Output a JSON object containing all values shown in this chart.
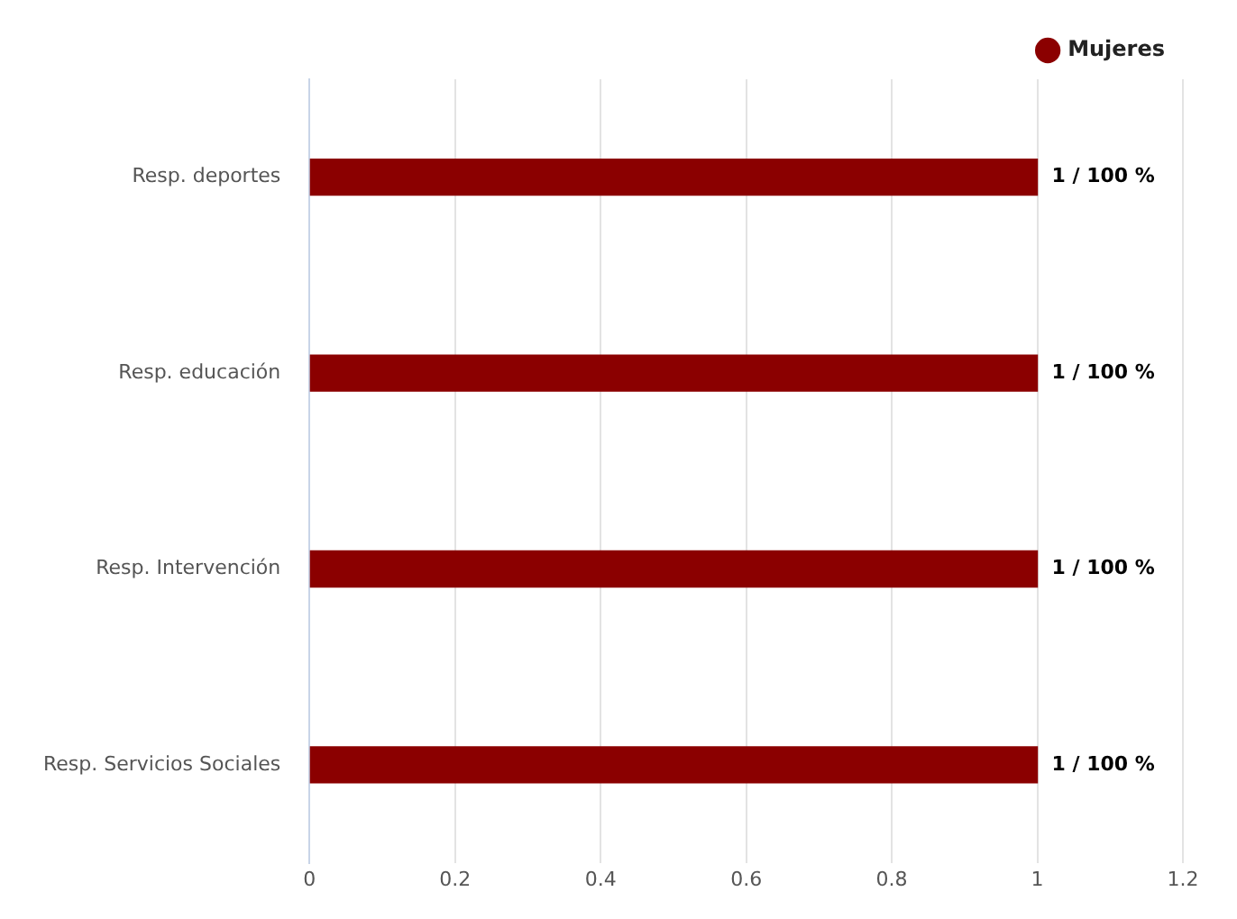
{
  "chart_data": {
    "type": "bar",
    "orientation": "horizontal",
    "categories": [
      "Resp. deportes",
      "Resp. educación",
      "Resp. Intervención",
      "Resp. Servicios Sociales"
    ],
    "series": [
      {
        "name": "Mujeres",
        "color": "#8b0000",
        "values": [
          1,
          1,
          1,
          1
        ],
        "value_labels": [
          "1 / 100 %",
          "1 / 100 %",
          "1 / 100 %",
          "1 / 100 %"
        ]
      }
    ],
    "xlim": [
      0,
      1.2
    ],
    "xticks": [
      0,
      0.2,
      0.4,
      0.6,
      0.8,
      1,
      1.2
    ],
    "grid": "x",
    "legend": "top right"
  }
}
